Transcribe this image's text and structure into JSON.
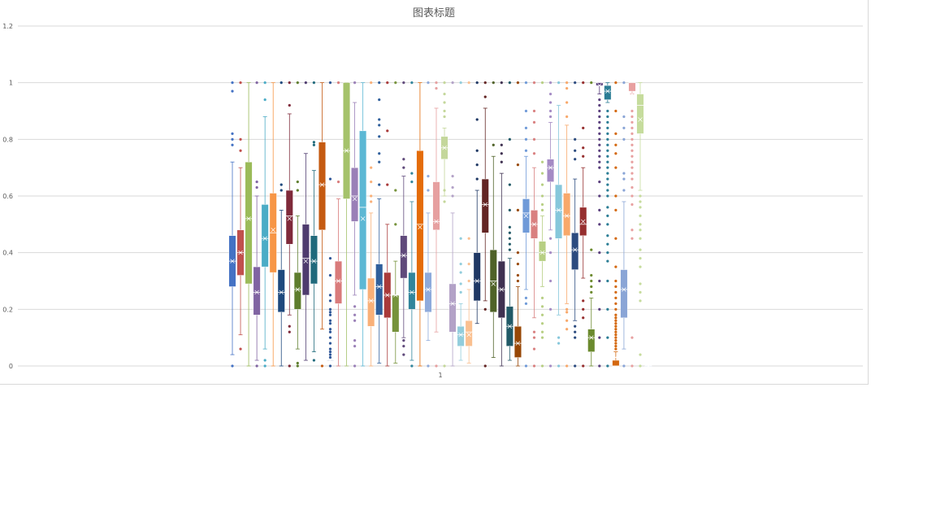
{
  "chart_data": {
    "type": "boxplot",
    "title": "图表标题",
    "xlabel": "",
    "ylabel": "",
    "categories": [
      "1"
    ],
    "ylim": [
      0,
      1.2
    ],
    "yticks": [
      "0",
      "0.2",
      "0.4",
      "0.6",
      "0.8",
      "1",
      "1.2"
    ],
    "grid": true,
    "series": [
      {
        "color": "#4472c4",
        "min": 0.04,
        "q1": 0.28,
        "median": 0.37,
        "mean": 0.37,
        "q3": 0.46,
        "max": 0.72,
        "outliers": [
          0,
          0.78,
          0.8,
          0.82,
          0.97,
          1
        ]
      },
      {
        "color": "#c0504d",
        "min": 0.11,
        "q1": 0.32,
        "median": 0.4,
        "mean": 0.4,
        "q3": 0.48,
        "max": 0.7,
        "outliers": [
          0.06,
          0.76,
          0.8,
          1
        ]
      },
      {
        "color": "#9bbb59",
        "min": 0,
        "q1": 0.29,
        "median": 0.52,
        "mean": 0.52,
        "q3": 0.72,
        "max": 1,
        "outliers": []
      },
      {
        "color": "#8064a2",
        "min": 0.02,
        "q1": 0.18,
        "median": 0.26,
        "mean": 0.26,
        "q3": 0.35,
        "max": 0.6,
        "outliers": [
          0,
          0.63,
          0.65,
          1
        ]
      },
      {
        "color": "#4bacc6",
        "min": 0.06,
        "q1": 0.35,
        "median": 0.45,
        "mean": 0.45,
        "q3": 0.57,
        "max": 0.88,
        "outliers": [
          0,
          0.02,
          0.94,
          1
        ]
      },
      {
        "color": "#f79646",
        "min": 0,
        "q1": 0.33,
        "median": 0.47,
        "mean": 0.48,
        "q3": 0.61,
        "max": 1,
        "outliers": []
      },
      {
        "color": "#1f497d",
        "min": 0,
        "q1": 0.19,
        "median": 0.26,
        "mean": 0.26,
        "q3": 0.34,
        "max": 0.55,
        "outliers": [
          0.62,
          0.64,
          1
        ]
      },
      {
        "color": "#7f2a3a",
        "min": 0.18,
        "q1": 0.43,
        "median": 0.53,
        "mean": 0.52,
        "q3": 0.62,
        "max": 0.89,
        "outliers": [
          0,
          0.12,
          0.14,
          0.92,
          1
        ]
      },
      {
        "color": "#5e7d2d",
        "min": 0.06,
        "q1": 0.2,
        "median": 0.27,
        "mean": 0.27,
        "q3": 0.33,
        "max": 0.53,
        "outliers": [
          0,
          0.01,
          0.62,
          0.65,
          1
        ]
      },
      {
        "color": "#4e3b6e",
        "min": 0.02,
        "q1": 0.25,
        "median": 0.38,
        "mean": 0.37,
        "q3": 0.5,
        "max": 0.75,
        "outliers": [
          1
        ]
      },
      {
        "color": "#206a7c",
        "min": 0.05,
        "q1": 0.29,
        "median": 0.37,
        "mean": 0.37,
        "q3": 0.46,
        "max": 0.69,
        "outliers": [
          0.02,
          0.78,
          0.79,
          1
        ]
      },
      {
        "color": "#c55a11",
        "min": 0.13,
        "q1": 0.48,
        "median": 0.64,
        "mean": 0.64,
        "q3": 0.79,
        "max": 1,
        "outliers": [
          0
        ]
      },
      {
        "color": "#2e5597",
        "min": 0.02,
        "q1": 0.02,
        "median": 0.02,
        "mean": 0.02,
        "q3": 0.02,
        "max": 0.02,
        "outliers": [
          0,
          0.03,
          0.04,
          0.05,
          0.06,
          0.08,
          0.1,
          0.12,
          0.13,
          0.15,
          0.16,
          0.18,
          0.19,
          0.2,
          0.23,
          0.25,
          0.32,
          0.38,
          0.66,
          1
        ]
      },
      {
        "color": "#d97b7b",
        "min": 0,
        "q1": 0.22,
        "median": 0.3,
        "mean": 0.3,
        "q3": 0.37,
        "max": 0.59,
        "outliers": [
          0.65,
          1
        ]
      },
      {
        "color": "#a5c26b",
        "min": 0,
        "q1": 0.59,
        "median": 0.76,
        "mean": 0.76,
        "q3": 1,
        "max": 1,
        "outliers": []
      },
      {
        "color": "#9a80b7",
        "min": 0.25,
        "q1": 0.51,
        "median": 0.6,
        "mean": 0.59,
        "q3": 0.7,
        "max": 0.93,
        "outliers": [
          0,
          0.07,
          0.09,
          0.16,
          0.18,
          0.21,
          1
        ]
      },
      {
        "color": "#5cb8d4",
        "min": 0,
        "q1": 0.27,
        "median": 0.56,
        "mean": 0.52,
        "q3": 0.83,
        "max": 1,
        "outliers": []
      },
      {
        "color": "#f9b078",
        "min": 0,
        "q1": 0.14,
        "median": 0.23,
        "mean": 0.23,
        "q3": 0.31,
        "max": 0.54,
        "outliers": [
          0.58,
          0.6,
          0.65,
          0.7,
          1
        ]
      },
      {
        "color": "#2f5f9c",
        "min": 0.01,
        "q1": 0.18,
        "median": 0.28,
        "mean": 0.28,
        "q3": 0.36,
        "max": 0.59,
        "outliers": [
          0.64,
          0.72,
          0.75,
          0.81,
          0.85,
          0.87,
          0.94,
          1
        ]
      },
      {
        "color": "#a93a3a",
        "min": 0,
        "q1": 0.17,
        "median": 0.25,
        "mean": 0.25,
        "q3": 0.33,
        "max": 0.5,
        "outliers": [
          0.64,
          0.83,
          1
        ]
      },
      {
        "color": "#77933c",
        "min": 0.01,
        "q1": 0.12,
        "median": 0.25,
        "mean": 0.25,
        "q3": 0.25,
        "max": 0.37,
        "outliers": [
          0.5,
          0.62,
          1
        ]
      },
      {
        "color": "#604a7b",
        "min": 0.1,
        "q1": 0.31,
        "median": 0.39,
        "mean": 0.39,
        "q3": 0.46,
        "max": 0.67,
        "outliers": [
          0.04,
          0.07,
          0.09,
          0.7,
          0.73,
          1
        ]
      },
      {
        "color": "#31859c",
        "min": 0.02,
        "q1": 0.2,
        "median": 0.26,
        "mean": 0.26,
        "q3": 0.33,
        "max": 0.58,
        "outliers": [
          0,
          0.65,
          0.68,
          1
        ]
      },
      {
        "color": "#e46c0a",
        "min": 0,
        "q1": 0.23,
        "median": 0.5,
        "mean": 0.49,
        "q3": 0.76,
        "max": 1,
        "outliers": []
      },
      {
        "color": "#8eaadb",
        "min": 0.09,
        "q1": 0.19,
        "median": 0.27,
        "mean": 0.27,
        "q3": 0.33,
        "max": 0.54,
        "outliers": [
          0,
          0.62,
          0.67,
          1
        ]
      },
      {
        "color": "#e6a0a0",
        "min": 0.12,
        "q1": 0.48,
        "median": 0.51,
        "mean": 0.51,
        "q3": 0.65,
        "max": 0.91,
        "outliers": [
          0,
          0.98,
          1
        ]
      },
      {
        "color": "#c4d79b",
        "min": 0.6,
        "q1": 0.73,
        "median": 0.77,
        "mean": 0.77,
        "q3": 0.81,
        "max": 0.84,
        "outliers": [
          0,
          0.58,
          0.62,
          0.88,
          0.9,
          0.93,
          0.96,
          1
        ]
      },
      {
        "color": "#b3a2c7",
        "min": 0,
        "q1": 0.12,
        "median": 0.22,
        "mean": 0.22,
        "q3": 0.29,
        "max": 0.54,
        "outliers": [
          0.6,
          0.63,
          0.67,
          1
        ]
      },
      {
        "color": "#92cddc",
        "min": 0.02,
        "q1": 0.07,
        "median": 0.11,
        "mean": 0.11,
        "q3": 0.14,
        "max": 0.22,
        "outliers": [
          0.26,
          0.29,
          0.33,
          0.36,
          0.45,
          1
        ]
      },
      {
        "color": "#fac090",
        "min": 0.01,
        "q1": 0.07,
        "median": 0.12,
        "mean": 0.11,
        "q3": 0.16,
        "max": 0.27,
        "outliers": [
          0.3,
          0.36,
          0.45,
          1
        ]
      },
      {
        "color": "#1f3864",
        "min": 0.15,
        "q1": 0.23,
        "median": 0.3,
        "mean": 0.3,
        "q3": 0.4,
        "max": 0.62,
        "outliers": [
          0.66,
          0.71,
          0.76,
          0.87,
          1
        ]
      },
      {
        "color": "#632523",
        "min": 0.23,
        "q1": 0.47,
        "median": 0.57,
        "mean": 0.57,
        "q3": 0.66,
        "max": 0.91,
        "outliers": [
          0,
          0.2,
          0.95,
          1
        ]
      },
      {
        "color": "#4f6228",
        "min": 0.03,
        "q1": 0.19,
        "median": 0.3,
        "mean": 0.29,
        "q3": 0.41,
        "max": 0.74,
        "outliers": [
          0.78,
          1
        ]
      },
      {
        "color": "#3f3151",
        "min": 0,
        "q1": 0.17,
        "median": 0.27,
        "mean": 0.27,
        "q3": 0.37,
        "max": 0.68,
        "outliers": [
          0.72,
          0.75,
          0.78,
          1
        ]
      },
      {
        "color": "#215967",
        "min": 0.02,
        "q1": 0.07,
        "median": 0.14,
        "mean": 0.14,
        "q3": 0.21,
        "max": 0.38,
        "outliers": [
          0.41,
          0.43,
          0.45,
          0.47,
          0.49,
          0.55,
          0.64,
          0.8,
          1
        ]
      },
      {
        "color": "#974706",
        "min": 0,
        "q1": 0.03,
        "median": 0.08,
        "mean": 0.08,
        "q3": 0.14,
        "max": 0.28,
        "outliers": [
          0.3,
          0.32,
          0.36,
          0.4,
          0.55,
          0.71,
          1
        ]
      },
      {
        "color": "#6f9ad8",
        "min": 0.27,
        "q1": 0.47,
        "median": 0.54,
        "mean": 0.53,
        "q3": 0.59,
        "max": 0.74,
        "outliers": [
          0,
          0.22,
          0.24,
          0.76,
          0.8,
          0.84,
          0.9,
          1
        ]
      },
      {
        "color": "#d98080",
        "min": 0.17,
        "q1": 0.45,
        "median": 0.5,
        "mean": 0.5,
        "q3": 0.55,
        "max": 0.7,
        "outliers": [
          0,
          0.06,
          0.1,
          0.12,
          0.75,
          0.8,
          0.86,
          0.9,
          1
        ]
      },
      {
        "color": "#b7cf83",
        "min": 0.28,
        "q1": 0.37,
        "median": 0.4,
        "mean": 0.4,
        "q3": 0.44,
        "max": 0.53,
        "outliers": [
          0,
          0.1,
          0.12,
          0.15,
          0.18,
          0.21,
          0.24,
          0.55,
          0.57,
          0.6,
          0.64,
          0.68,
          0.72,
          1
        ]
      },
      {
        "color": "#a48bc4",
        "min": 0.48,
        "q1": 0.65,
        "median": 0.7,
        "mean": 0.7,
        "q3": 0.73,
        "max": 0.86,
        "outliers": [
          0,
          0.2,
          0.3,
          0.4,
          0.45,
          0.88,
          0.9,
          0.93,
          0.96,
          1
        ]
      },
      {
        "color": "#86c7db",
        "min": 0.18,
        "q1": 0.45,
        "median": 0.55,
        "mean": 0.55,
        "q3": 0.64,
        "max": 0.92,
        "outliers": [
          0,
          0.08,
          0.1,
          1
        ]
      },
      {
        "color": "#f8a86a",
        "min": 0.22,
        "q1": 0.46,
        "median": 0.53,
        "mean": 0.53,
        "q3": 0.61,
        "max": 0.85,
        "outliers": [
          0,
          0.13,
          0.16,
          0.19,
          0.2,
          0.88,
          0.93,
          0.98,
          1
        ]
      },
      {
        "color": "#2c4b7f",
        "min": 0.16,
        "q1": 0.34,
        "median": 0.41,
        "mean": 0.41,
        "q3": 0.47,
        "max": 0.66,
        "outliers": [
          0,
          0.1,
          0.12,
          0.14,
          0.73,
          0.76,
          0.8,
          1
        ]
      },
      {
        "color": "#962e2e",
        "min": 0.31,
        "q1": 0.46,
        "median": 0.5,
        "mean": 0.51,
        "q3": 0.56,
        "max": 0.7,
        "outliers": [
          0,
          0.17,
          0.2,
          0.23,
          0.74,
          0.77,
          0.84,
          1
        ]
      },
      {
        "color": "#6b8a2e",
        "min": 0,
        "q1": 0.05,
        "median": 0.1,
        "mean": 0.1,
        "q3": 0.13,
        "max": 0.24,
        "outliers": [
          0.26,
          0.28,
          0.3,
          0.32,
          0.41,
          1
        ]
      },
      {
        "color": "#5a3f7d",
        "min": 0.96,
        "q1": 0.99,
        "median": 1,
        "mean": 0.99,
        "q3": 1,
        "max": 1,
        "outliers": [
          0,
          0.1,
          0.2,
          0.3,
          0.4,
          0.5,
          0.55,
          0.6,
          0.65,
          0.7,
          0.72,
          0.74,
          0.76,
          0.78,
          0.8,
          0.82,
          0.84,
          0.86,
          0.88,
          0.9,
          0.92,
          0.94
        ]
      },
      {
        "color": "#2b7d95",
        "min": 0.93,
        "q1": 0.94,
        "median": 0.97,
        "mean": 0.97,
        "q3": 0.99,
        "max": 1,
        "outliers": [
          0,
          0.1,
          0.2,
          0.3,
          0.37,
          0.4,
          0.43,
          0.46,
          0.5,
          0.53,
          0.56,
          0.6,
          0.62,
          0.64,
          0.66,
          0.68,
          0.7,
          0.72,
          0.74,
          0.76,
          0.78,
          0.8,
          0.82,
          0.84,
          0.86,
          0.88,
          0.9
        ]
      },
      {
        "color": "#d4680f",
        "min": 0,
        "q1": 0,
        "median": 0,
        "mean": 0.03,
        "q3": 0.02,
        "max": 0.05,
        "outliers": [
          0.06,
          0.07,
          0.08,
          0.09,
          0.1,
          0.11,
          0.12,
          0.13,
          0.14,
          0.15,
          0.16,
          0.17,
          0.18,
          0.2,
          0.22,
          0.24,
          0.26,
          0.28,
          0.3,
          0.35,
          0.45,
          0.55,
          0.6,
          0.7,
          0.75,
          0.78,
          0.82,
          0.9,
          1
        ]
      },
      {
        "color": "#8aa5d6",
        "min": 0.06,
        "q1": 0.17,
        "median": 0.27,
        "mean": 0.27,
        "q3": 0.34,
        "max": 0.58,
        "outliers": [
          0,
          0.62,
          0.66,
          0.68,
          0.8,
          0.84,
          0.88,
          1
        ]
      },
      {
        "color": "#e8a0a0",
        "min": 0.96,
        "q1": 0.97,
        "median": 1,
        "mean": 0.96,
        "q3": 1,
        "max": 1,
        "outliers": [
          0,
          0.1,
          0.45,
          0.48,
          0.57,
          0.6,
          0.63,
          0.66,
          0.68,
          0.7,
          0.72,
          0.74,
          0.76,
          0.78,
          0.8,
          0.82,
          0.84,
          0.86,
          0.88,
          0.9
        ]
      },
      {
        "color": "#c6dc9d",
        "min": 0.62,
        "q1": 0.82,
        "median": 0.92,
        "mean": 0.87,
        "q3": 0.96,
        "max": 1,
        "outliers": [
          0,
          0.04,
          0.23,
          0.26,
          0.29,
          0.35,
          0.38,
          0.41,
          0.45,
          0.48,
          0.5,
          0.53,
          0.56,
          0.58,
          0.6
        ]
      },
      {
        "color": "#8aa5d6",
        "min": 0,
        "q1": 0,
        "median": 0,
        "mean": 0,
        "q3": 0,
        "max": 0,
        "outliers": []
      }
    ]
  }
}
